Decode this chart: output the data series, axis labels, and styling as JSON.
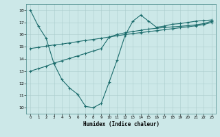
{
  "xlabel": "Humidex (Indice chaleur)",
  "xlim": [
    -0.5,
    23.5
  ],
  "ylim": [
    9.5,
    18.5
  ],
  "xticks": [
    0,
    1,
    2,
    3,
    4,
    5,
    6,
    7,
    8,
    9,
    10,
    11,
    12,
    13,
    14,
    15,
    16,
    17,
    18,
    19,
    20,
    21,
    22,
    23
  ],
  "yticks": [
    10,
    11,
    12,
    13,
    14,
    15,
    16,
    17,
    18
  ],
  "bg_color": "#cce8e8",
  "line_color": "#1a6b6b",
  "grid_color": "#aacccc",
  "line1_x": [
    0,
    1,
    2,
    3,
    4,
    5,
    6,
    7,
    8,
    9,
    10,
    11,
    12,
    13,
    14,
    15,
    16,
    17,
    18,
    19,
    20,
    21,
    22,
    23
  ],
  "line1_y": [
    18.0,
    16.7,
    15.7,
    13.6,
    12.3,
    11.6,
    11.1,
    10.1,
    10.0,
    10.35,
    12.1,
    13.9,
    15.9,
    17.1,
    17.6,
    17.1,
    16.6,
    16.7,
    16.85,
    16.9,
    17.0,
    17.1,
    17.15,
    17.2
  ],
  "line2_x": [
    0,
    1,
    2,
    3,
    4,
    5,
    6,
    7,
    8,
    9,
    10,
    11,
    12,
    13,
    14,
    15,
    16,
    17,
    18,
    19,
    20,
    21,
    22,
    23
  ],
  "line2_y": [
    14.85,
    14.95,
    15.05,
    15.15,
    15.22,
    15.32,
    15.42,
    15.52,
    15.6,
    15.7,
    15.8,
    15.9,
    16.0,
    16.08,
    16.16,
    16.24,
    16.32,
    16.4,
    16.48,
    16.56,
    16.64,
    16.72,
    16.82,
    17.0
  ],
  "line3_x": [
    0,
    1,
    2,
    3,
    4,
    5,
    6,
    7,
    8,
    9,
    10,
    11,
    12,
    13,
    14,
    15,
    16,
    17,
    18,
    19,
    20,
    21,
    22,
    23
  ],
  "line3_y": [
    13.0,
    13.2,
    13.4,
    13.65,
    13.85,
    14.05,
    14.25,
    14.45,
    14.65,
    14.85,
    15.8,
    16.0,
    16.15,
    16.25,
    16.35,
    16.45,
    16.52,
    16.58,
    16.63,
    16.68,
    16.73,
    16.8,
    16.9,
    17.1
  ]
}
